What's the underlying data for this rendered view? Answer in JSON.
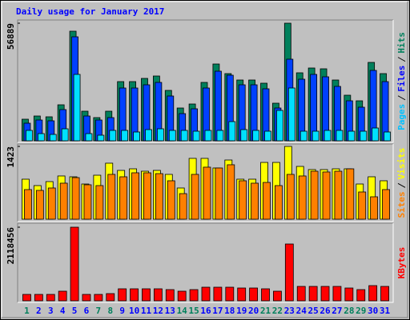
{
  "chart_data": [
    {
      "type": "bar",
      "title": "Daily usage for January 2017",
      "ylim": [
        0,
        56889
      ],
      "yticks": [
        56889
      ],
      "series": [
        {
          "name": "Hits",
          "color": "#00805c",
          "values": [
            10449,
            11997,
            11610,
            17415,
            53019,
            14319,
            11223,
            14319,
            28638,
            28638,
            30186,
            31347,
            24381,
            15867,
            17802,
            28251,
            37152,
            32508,
            29412,
            29412,
            27864,
            18189,
            56889,
            32895,
            35217,
            34830,
            29412,
            22059,
            19350,
            37926,
            32508
          ]
        },
        {
          "name": "Files",
          "color": "#0040ff",
          "values": [
            8514,
            10062,
            9675,
            15093,
            50310,
            11997,
            10062,
            11223,
            25542,
            25542,
            27090,
            28251,
            21672,
            13158,
            15480,
            25542,
            33669,
            31734,
            27090,
            27090,
            25155,
            15867,
            39474,
            29799,
            32121,
            30960,
            26316,
            19350,
            16254,
            34056,
            28638
          ]
        },
        {
          "name": "Pages",
          "color": "#00e0ff",
          "values": [
            5031,
            3483,
            3096,
            5805,
            32121,
            3483,
            2709,
            5031,
            5031,
            4257,
            5418,
            5805,
            5031,
            5031,
            4644,
            5031,
            5031,
            9288,
            5418,
            5031,
            4644,
            14706,
            25542,
            4644,
            4644,
            5031,
            5031,
            4644,
            4644,
            6192,
            4257
          ]
        }
      ],
      "legend_colors": {
        "Hits": "#00805c",
        "Files": "#0000ff",
        "Pages": "#00c0ff"
      }
    },
    {
      "type": "bar",
      "ylim": [
        0,
        1423
      ],
      "yticks": [
        1423
      ],
      "series": [
        {
          "name": "Visits",
          "color": "#ffff00",
          "values": [
            782,
            657,
            735,
            845,
            829,
            688,
            860,
            1095,
            954,
            985,
            938,
            954,
            876,
            610,
            1189,
            1189,
            1001,
            1157,
            782,
            782,
            1110,
            1110,
            1423,
            1032,
            970,
            970,
            985,
            985,
            688,
            829,
            751
          ]
        },
        {
          "name": "Sites",
          "color": "#ff8000",
          "values": [
            579,
            563,
            610,
            704,
            813,
            673,
            657,
            876,
            829,
            907,
            907,
            891,
            751,
            500,
            876,
            1017,
            1001,
            1064,
            751,
            704,
            719,
            657,
            876,
            845,
            938,
            923,
            938,
            985,
            532,
            438,
            579
          ]
        }
      ],
      "legend_colors": {
        "Visits": "#ffff00",
        "Sites": "#ff8000"
      }
    },
    {
      "type": "bar",
      "ylim": [
        0,
        2118456
      ],
      "yticks": [
        2118456
      ],
      "categories": [
        "1",
        "2",
        "3",
        "4",
        "5",
        "6",
        "7",
        "8",
        "9",
        "10",
        "11",
        "12",
        "13",
        "14",
        "15",
        "16",
        "17",
        "18",
        "19",
        "20",
        "21",
        "22",
        "23",
        "24",
        "25",
        "26",
        "27",
        "28",
        "29",
        "30",
        "31"
      ],
      "category_color": "#0000ff",
      "highlight": {
        "color": "#00805c",
        "categories": [
          "1",
          "7",
          "8",
          "14",
          "15",
          "21",
          "22",
          "28",
          "29"
        ]
      },
      "series": [
        {
          "name": "KBytes",
          "color": "#ff0000",
          "values": [
            184216,
            184216,
            184216,
            276324,
            2118456,
            184216,
            184216,
            207243,
            345405,
            345405,
            345405,
            345405,
            322378,
            276324,
            322378,
            391459,
            391459,
            391459,
            368432,
            368432,
            345405,
            276324,
            1634917,
            414486,
            414486,
            414486,
            414486,
            368432,
            322378,
            437513,
            414486
          ]
        }
      ],
      "legend_colors": {
        "KBytes": "#ff0000"
      }
    }
  ]
}
